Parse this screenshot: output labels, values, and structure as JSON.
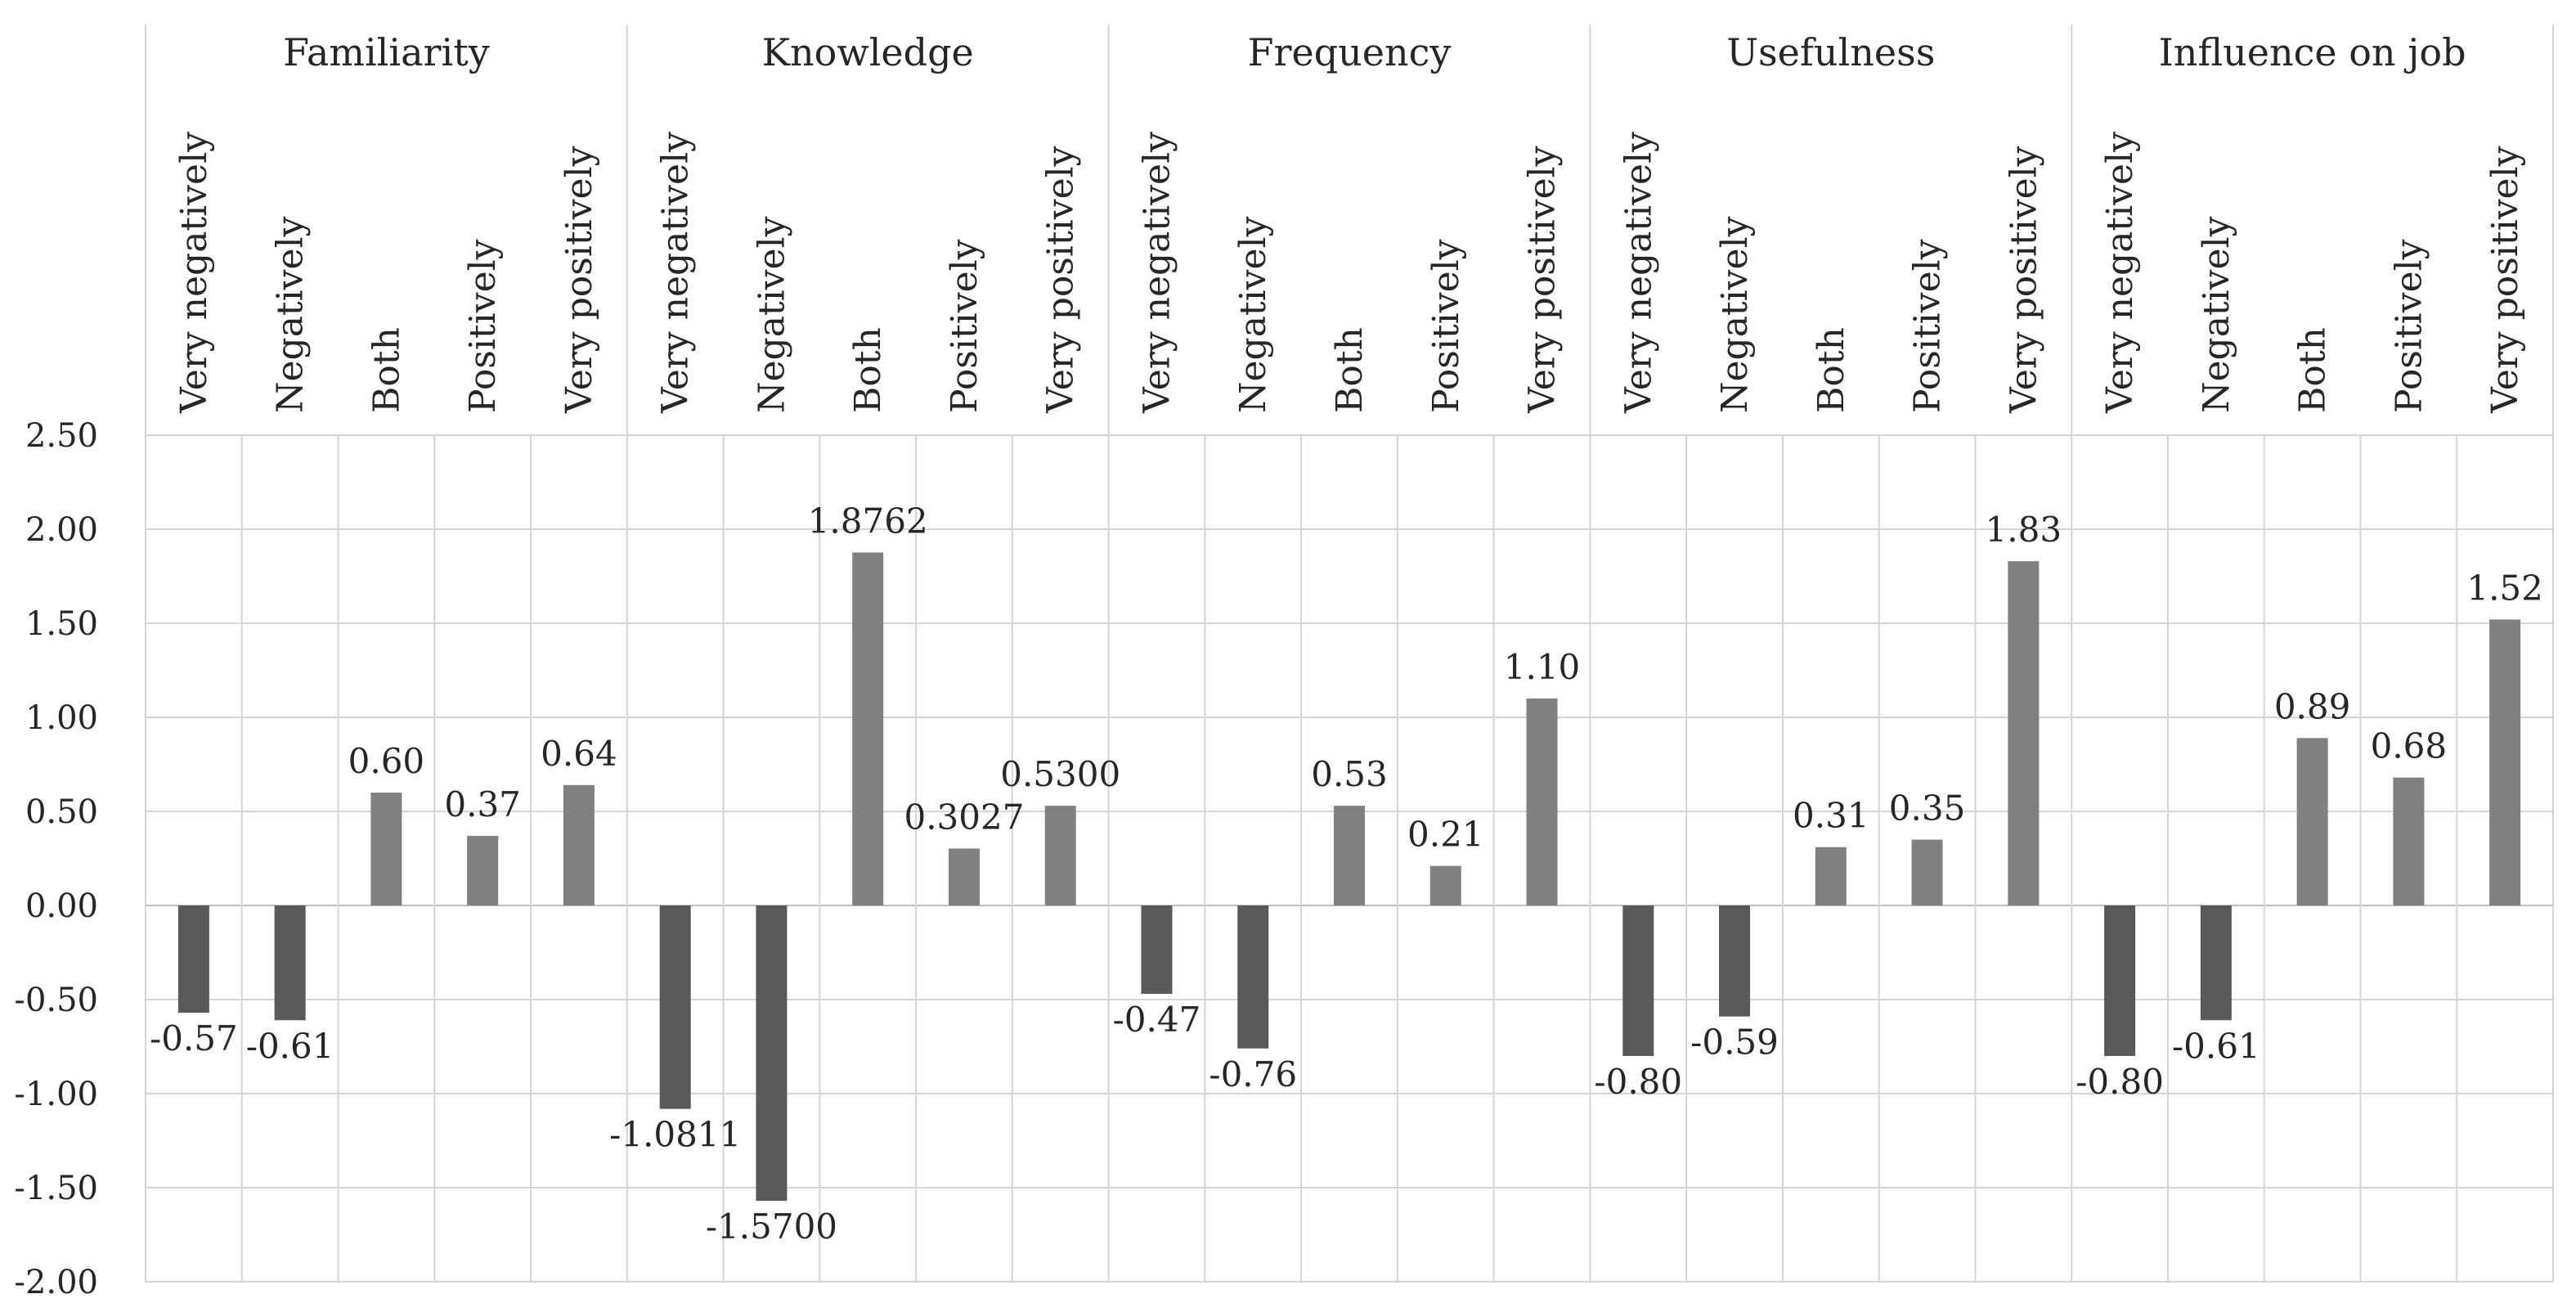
{
  "chart_data": {
    "type": "bar",
    "title": "",
    "xlabel": "",
    "ylabel": "",
    "ylim": [
      -2.0,
      2.5
    ],
    "yticks": [
      "2.50",
      "2.00",
      "1.50",
      "1.00",
      "0.50",
      "0.00",
      "-0.50",
      "-1.00",
      "-1.50",
      "-2.00"
    ],
    "ytick_values": [
      2.5,
      2.0,
      1.5,
      1.0,
      0.5,
      0.0,
      -0.5,
      -1.0,
      -1.5,
      -2.0
    ],
    "grid": true,
    "categories": [
      "Very negatively",
      "Negatively",
      "Both",
      "Positively",
      "Very positively"
    ],
    "colors": {
      "negative": "#595959",
      "positive": "#808080"
    },
    "groups": [
      {
        "name": "Familiarity",
        "values": [
          -0.57,
          -0.61,
          0.6,
          0.37,
          0.64
        ],
        "labels": [
          "-0.57",
          "-0.61",
          "0.60",
          "0.37",
          "0.64"
        ]
      },
      {
        "name": "Knowledge",
        "values": [
          -1.0811,
          -1.57,
          1.8762,
          0.3027,
          0.53
        ],
        "labels": [
          "-1.0811",
          "-1.5700",
          "1.8762",
          "0.3027",
          "0.5300"
        ]
      },
      {
        "name": "Frequency",
        "values": [
          -0.47,
          -0.76,
          0.53,
          0.21,
          1.1
        ],
        "labels": [
          "-0.47",
          "-0.76",
          "0.53",
          "0.21",
          "1.10"
        ]
      },
      {
        "name": "Usefulness",
        "values": [
          -0.8,
          -0.59,
          0.31,
          0.35,
          1.83
        ],
        "labels": [
          "-0.80",
          "-0.59",
          "0.31",
          "0.35",
          "1.83"
        ]
      },
      {
        "name": "Influence on job",
        "values": [
          -0.8,
          -0.61,
          0.89,
          0.68,
          1.52
        ],
        "labels": [
          "-0.80",
          "-0.61",
          "0.89",
          "0.68",
          "1.52"
        ]
      }
    ]
  }
}
